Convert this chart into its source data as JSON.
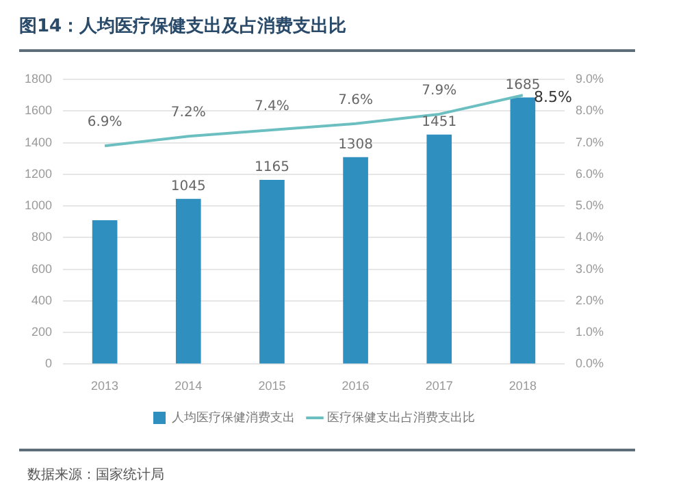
{
  "chart_data": {
    "type": "bar",
    "title": "图14：人均医疗保健支出及占消费支出比",
    "categories": [
      "2013",
      "2014",
      "2015",
      "2016",
      "2017",
      "2018"
    ],
    "series": [
      {
        "name": "人均医疗保健消费支出",
        "color": "#2f8fbf",
        "values": [
          910,
          1045,
          1165,
          1308,
          1451,
          1685
        ],
        "value_labels": [
          null,
          "1045",
          "1165",
          "1308",
          "1451",
          "1685"
        ]
      },
      {
        "name": "医疗保健支出占消费支出比",
        "type": "line",
        "axis": "y2",
        "color": "#6cbfc0",
        "values": [
          6.9,
          7.2,
          7.4,
          7.6,
          7.9,
          8.5
        ],
        "value_labels": [
          "6.9%",
          "7.2%",
          "7.4%",
          "7.6%",
          "7.9%",
          "8.5%"
        ]
      }
    ],
    "ylim": [
      0,
      1800
    ],
    "yticks": [
      0,
      200,
      400,
      600,
      800,
      1000,
      1200,
      1400,
      1600,
      1800
    ],
    "y2lim": [
      0,
      9
    ],
    "y2ticks": [
      {
        "value": 0,
        "label": "0.0%"
      },
      {
        "value": 1,
        "label": "1.0%"
      },
      {
        "value": 2,
        "label": "2.0%"
      },
      {
        "value": 3,
        "label": "3.0%"
      },
      {
        "value": 4,
        "label": "4.0%"
      },
      {
        "value": 5,
        "label": "5.0%"
      },
      {
        "value": 6,
        "label": "6.0%"
      },
      {
        "value": 7,
        "label": "7.0%"
      },
      {
        "value": 8,
        "label": "8.0%"
      },
      {
        "value": 9,
        "label": "9.0%"
      }
    ],
    "grid": "y",
    "legend": "bottom",
    "marker": "none",
    "line_style": "solid",
    "annotations": [
      "数据来源：国家统计局"
    ]
  }
}
